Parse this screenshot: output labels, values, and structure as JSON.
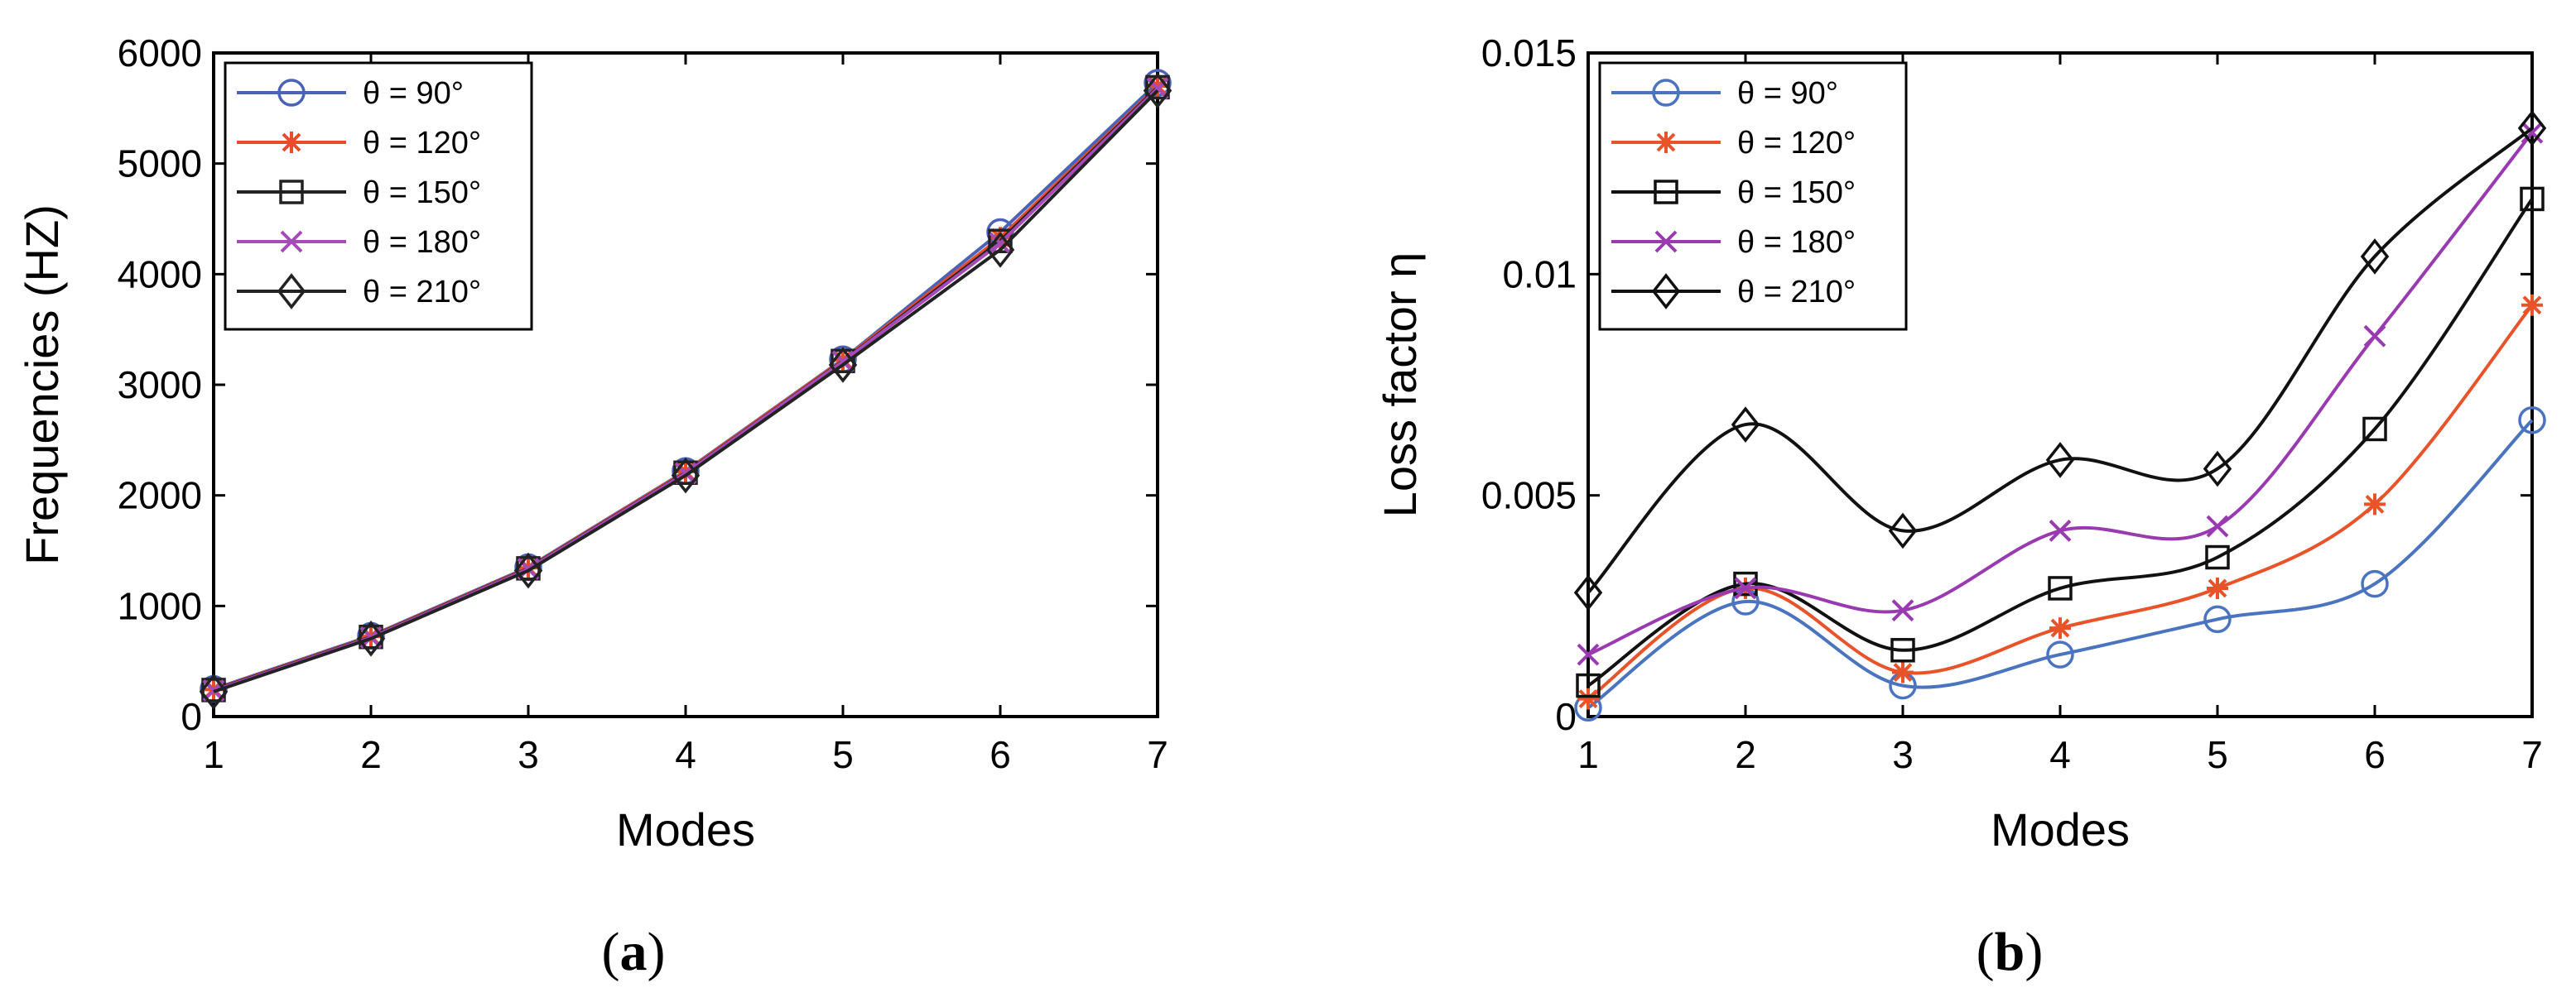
{
  "chart_data": [
    {
      "type": "line",
      "caption": "a",
      "xlabel": "Modes",
      "ylabel": "Frequencies (HZ)",
      "xlim": [
        1,
        7
      ],
      "ylim": [
        0,
        6000
      ],
      "xticks": [
        1,
        2,
        3,
        4,
        5,
        6,
        7
      ],
      "yticks": [
        0,
        1000,
        2000,
        3000,
        4000,
        5000,
        6000
      ],
      "ytick_labels": [
        "0",
        "1000",
        "2000",
        "3000",
        "4000",
        "5000",
        "6000"
      ],
      "x": [
        1,
        2,
        3,
        4,
        5,
        6,
        7
      ],
      "legend_position": "top-left",
      "series": [
        {
          "name": "θ = 90°",
          "marker": "circle",
          "color": "#4a63b8",
          "values": [
            250,
            730,
            1350,
            2220,
            3230,
            4380,
            5730
          ]
        },
        {
          "name": "θ = 120°",
          "marker": "star",
          "color": "#e84a2a",
          "values": [
            245,
            725,
            1345,
            2215,
            3225,
            4330,
            5700
          ]
        },
        {
          "name": "θ = 150°",
          "marker": "square",
          "color": "#222222",
          "values": [
            240,
            720,
            1340,
            2205,
            3215,
            4300,
            5690
          ]
        },
        {
          "name": "θ = 180°",
          "marker": "x",
          "color": "#a64ab8",
          "values": [
            235,
            715,
            1335,
            2200,
            3210,
            4280,
            5680
          ]
        },
        {
          "name": "θ = 210°",
          "marker": "diamond",
          "color": "#222222",
          "values": [
            225,
            705,
            1320,
            2180,
            3180,
            4220,
            5660
          ]
        }
      ]
    },
    {
      "type": "line",
      "caption": "b",
      "xlabel": "Modes",
      "ylabel": "Loss factor  η",
      "xlim": [
        1,
        7
      ],
      "ylim": [
        0,
        0.015
      ],
      "xticks": [
        1,
        2,
        3,
        4,
        5,
        6,
        7
      ],
      "yticks": [
        0,
        0.005,
        0.01,
        0.015
      ],
      "ytick_labels": [
        "0",
        "0.005",
        "0.01",
        "0.015"
      ],
      "x": [
        1,
        2,
        3,
        4,
        5,
        6,
        7
      ],
      "legend_position": "top-left",
      "series": [
        {
          "name": "θ = 90°",
          "marker": "circle",
          "color": "#4a73c0",
          "values": [
            0.0002,
            0.0026,
            0.0007,
            0.0014,
            0.0022,
            0.003,
            0.0067
          ]
        },
        {
          "name": "θ = 120°",
          "marker": "star",
          "color": "#e8532a",
          "values": [
            0.0004,
            0.0029,
            0.001,
            0.002,
            0.0029,
            0.0048,
            0.0093
          ]
        },
        {
          "name": "θ = 150°",
          "marker": "square",
          "color": "#111111",
          "values": [
            0.0007,
            0.003,
            0.0015,
            0.0029,
            0.0036,
            0.0065,
            0.0117
          ]
        },
        {
          "name": "θ = 180°",
          "marker": "x",
          "color": "#9a3ab0",
          "values": [
            0.0014,
            0.0029,
            0.0024,
            0.0042,
            0.0043,
            0.0086,
            0.0132
          ]
        },
        {
          "name": "θ = 210°",
          "marker": "diamond",
          "color": "#111111",
          "values": [
            0.0028,
            0.0066,
            0.0042,
            0.0058,
            0.0056,
            0.0104,
            0.0133
          ]
        }
      ]
    }
  ]
}
